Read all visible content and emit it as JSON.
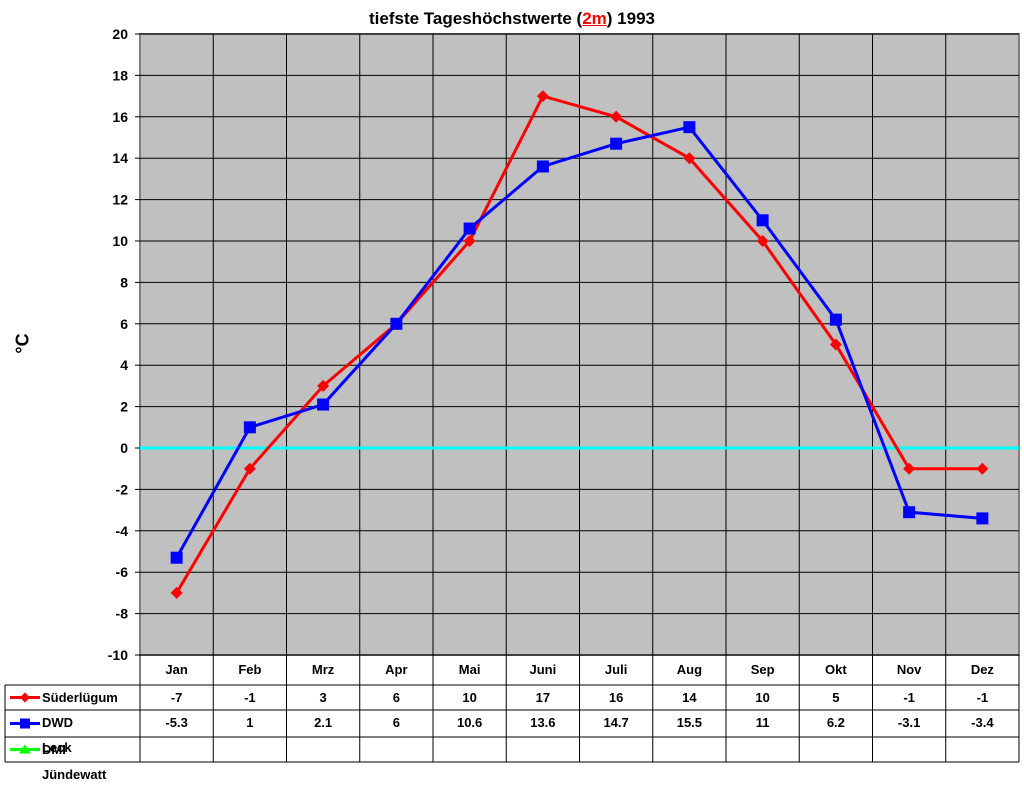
{
  "chart_data": {
    "type": "line",
    "title": "tiefste Tageshöchstwerte (2m) 1993",
    "title_parts": {
      "prefix": "tiefste Tageshöchstwerte (",
      "highlight": "2m",
      "suffix": ") 1993"
    },
    "xlabel": "",
    "ylabel": "°C",
    "ylim": [
      -10,
      20
    ],
    "yticks": [
      20,
      18,
      16,
      14,
      12,
      10,
      8,
      6,
      4,
      2,
      0,
      -2,
      -4,
      -6,
      -8,
      -10
    ],
    "grid": true,
    "legend_position": "data-table",
    "categories": [
      "Jan",
      "Feb",
      "Mrz",
      "Apr",
      "Mai",
      "Juni",
      "Juli",
      "Aug",
      "Sep",
      "Okt",
      "Nov",
      "Dez"
    ],
    "series": [
      {
        "name": "Süderlügum",
        "color": "#ff0000",
        "marker": "diamond",
        "values": [
          -7,
          -1,
          3,
          6,
          10,
          17,
          16,
          14,
          10,
          5,
          -1,
          -1
        ],
        "labels": [
          "-7",
          "-1",
          "3",
          "6",
          "10",
          "17",
          "16",
          "14",
          "10",
          "5",
          "-1",
          "-1"
        ]
      },
      {
        "name": "DWD Leck",
        "color": "#0000ff",
        "marker": "square",
        "values": [
          -5.3,
          1,
          2.1,
          6,
          10.6,
          13.6,
          14.7,
          15.5,
          11,
          6.2,
          -3.1,
          -3.4
        ],
        "labels": [
          "-5.3",
          "1",
          "2.1",
          "6",
          "10.6",
          "13.6",
          "14.7",
          "15.5",
          "11",
          "6.2",
          "-3.1",
          "-3.4"
        ]
      },
      {
        "name": "DMI Jündewatt",
        "color": "#00ff00",
        "marker": "triangle",
        "values": [
          null,
          null,
          null,
          null,
          null,
          null,
          null,
          null,
          null,
          null,
          null,
          null
        ],
        "labels": [
          "",
          "",
          "",
          "",
          "",
          "",
          "",
          "",
          "",
          "",
          "",
          ""
        ]
      }
    ],
    "zero_line_color": "#00ffff",
    "plot_background": "#c0c0c0"
  }
}
